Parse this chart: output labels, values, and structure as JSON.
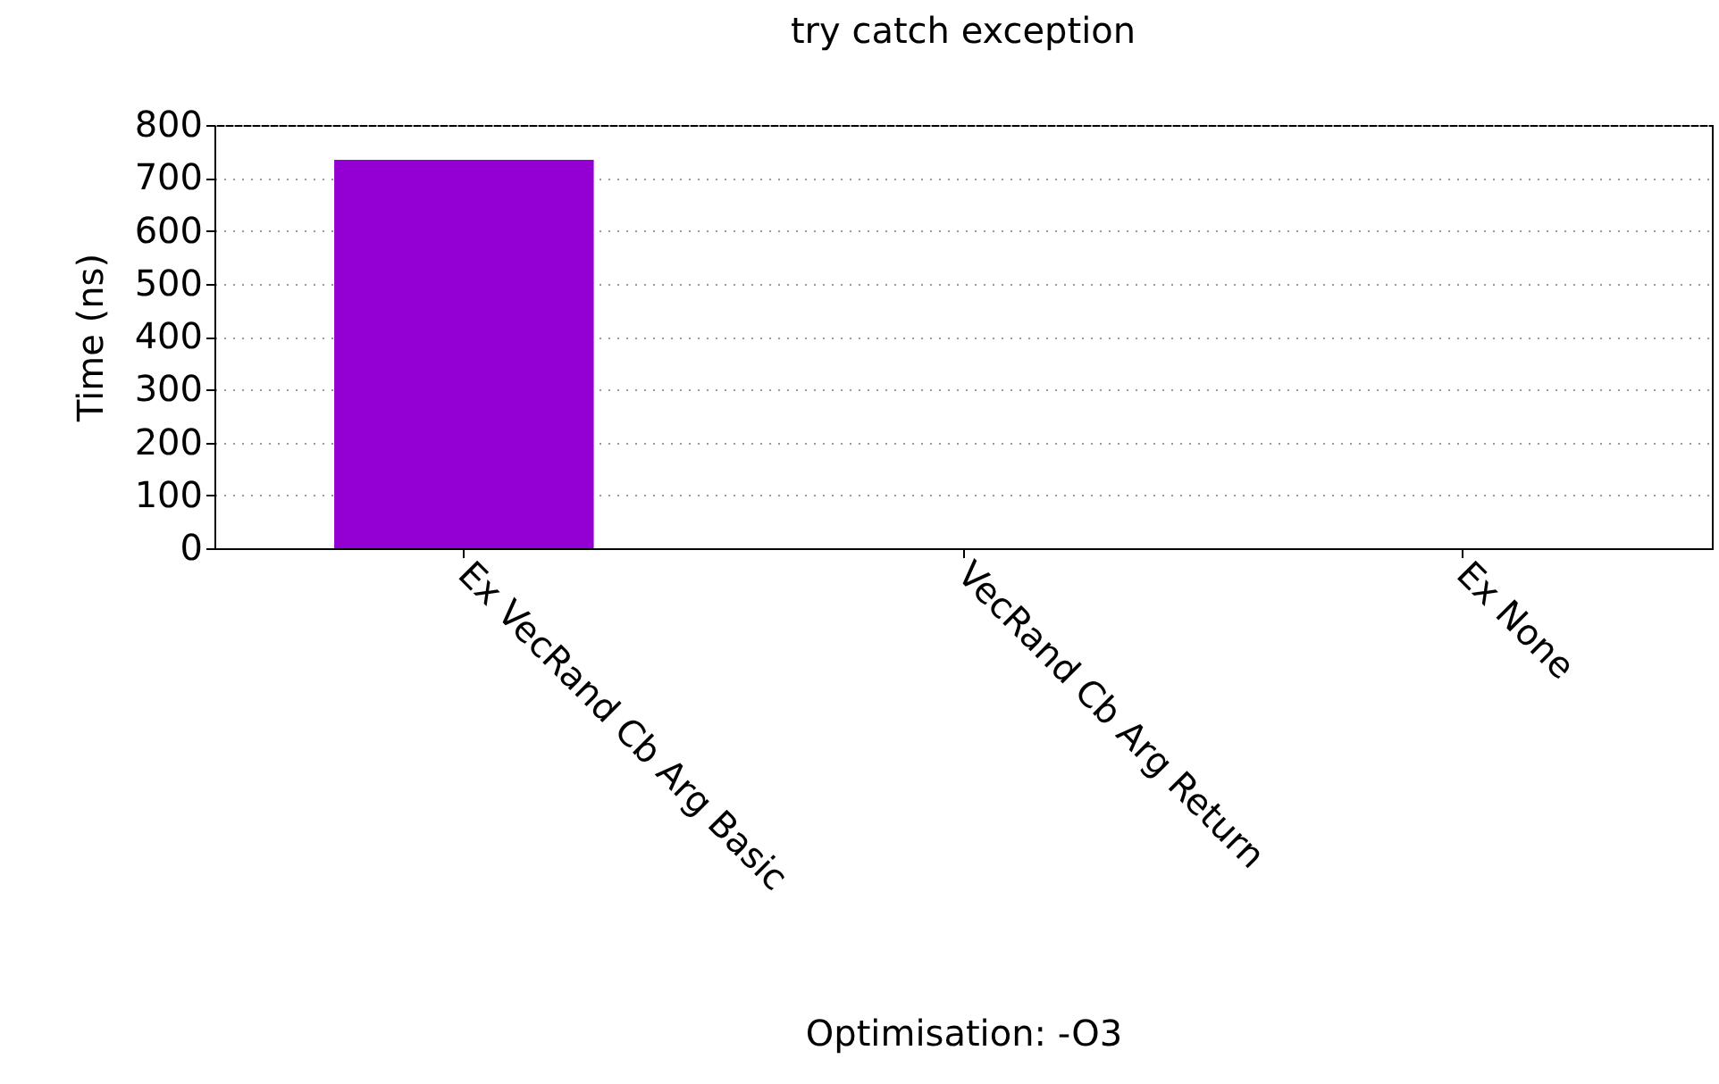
{
  "chart_data": {
    "type": "bar",
    "title": "try catch exception",
    "xlabel": "Optimisation: -O3",
    "ylabel": "Time (ns)",
    "categories": [
      "Ex VecRand Cb Arg Basic",
      "VecRand Cb Arg Return",
      "Ex None"
    ],
    "values": [
      734,
      0,
      0
    ],
    "color": "#9400d3",
    "ylim": [
      0,
      800
    ],
    "yticks": [
      0,
      100,
      200,
      300,
      400,
      500,
      600,
      700,
      800
    ],
    "grid": "y"
  }
}
